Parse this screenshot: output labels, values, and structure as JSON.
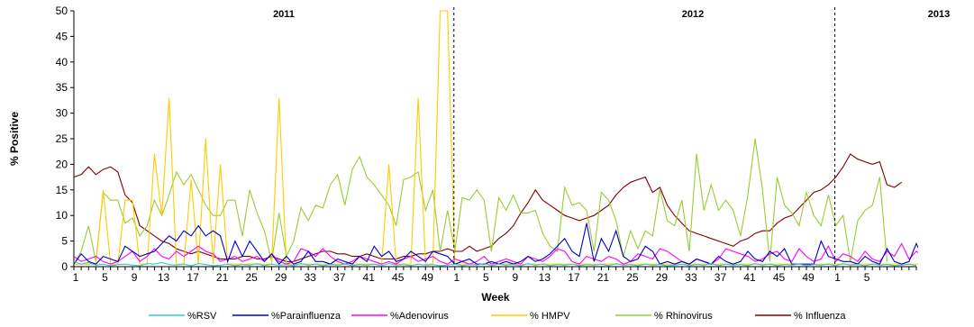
{
  "chart_data": {
    "type": "line",
    "ylabel": "% Positive",
    "xlabel": "Week",
    "ylim": [
      0,
      50
    ],
    "yticks": [
      0,
      5,
      10,
      15,
      20,
      25,
      30,
      35,
      40,
      45,
      50
    ],
    "x_tick_labels": [
      "1",
      "5",
      "9",
      "13",
      "17",
      "21",
      "25",
      "29",
      "33",
      "37",
      "41",
      "45",
      "49",
      "1",
      "5",
      "9",
      "13",
      "17",
      "21",
      "25",
      "29",
      "33",
      "37",
      "41",
      "45",
      "49",
      "1",
      "5"
    ],
    "year_labels": [
      "2011",
      "2012",
      "2013"
    ],
    "year_boundaries": [
      "2012 week 1",
      "2013 week 1"
    ],
    "legend_position": "bottom",
    "series": [
      {
        "name": "%RSV",
        "color": "#33CCCC",
        "values": [
          1.0,
          0.5,
          0.8,
          0.3,
          0.5,
          0.2,
          0.4,
          0.5,
          0.3,
          0.2,
          0.6,
          0.5,
          0.8,
          0.4,
          0.3,
          0.5,
          0.2,
          0.6,
          0.4,
          0.2,
          0.3,
          0.5,
          0.2,
          0.4,
          0.3,
          0.6,
          0.2,
          0.5,
          0.3,
          0.4,
          0.2,
          0.6,
          0.3,
          0.5,
          0.2,
          0.4,
          0.3,
          0.5,
          0.2,
          0.4,
          0.3,
          0.5,
          0.2,
          0.6,
          0.3,
          0.4,
          0.2,
          0.5,
          0.3,
          0.4,
          0.2,
          0.3,
          0.5,
          0.2,
          0.4,
          0.3,
          0.6,
          0.2,
          0.5,
          0.3,
          0.4,
          0.2,
          0.6,
          0.3,
          0.5,
          0.2,
          0.4,
          0.3,
          0.5,
          0.2,
          0.4,
          0.3,
          0.5,
          0.2,
          0.6,
          0.3,
          0.4,
          0.2,
          0.5,
          0.3,
          0.4,
          0.2,
          0.3,
          0.5,
          0.2,
          0.4,
          0.3,
          0.6,
          0.2,
          0.5,
          0.3,
          0.4,
          0.2,
          0.6,
          0.3,
          0.5,
          0.2,
          0.4,
          0.3,
          0.5,
          0.2,
          0.4,
          0.3,
          0.5,
          0.2,
          0.6,
          0.3,
          0.4,
          0.2,
          0.5,
          0.3,
          0.4,
          0.2,
          0.3,
          0.5,
          0.2
        ]
      },
      {
        "name": "%Parainfluenza",
        "color": "#0000CC",
        "values": [
          0.5,
          2.5,
          1.0,
          0.5,
          2.0,
          1.5,
          1.0,
          4.0,
          3.0,
          2.0,
          2.5,
          3.0,
          4.5,
          6.0,
          5.0,
          7.0,
          6.0,
          8.0,
          6.0,
          7.0,
          6.0,
          1.0,
          5.0,
          2.0,
          5.0,
          3.0,
          1.0,
          2.5,
          0.5,
          2.0,
          0.5,
          1.0,
          3.0,
          1.0,
          1.0,
          0.5,
          1.5,
          1.0,
          0.5,
          2.0,
          1.0,
          4.0,
          2.0,
          3.0,
          1.0,
          1.5,
          3.0,
          2.0,
          1.0,
          3.0,
          2.5,
          2.0,
          0.5,
          1.0,
          1.5,
          0.5,
          0.5,
          1.0,
          0.5,
          1.0,
          0.5,
          1.0,
          2.0,
          1.0,
          1.5,
          2.5,
          4.0,
          5.5,
          3.0,
          2.0,
          8.5,
          1.0,
          5.5,
          3.0,
          7.0,
          2.0,
          1.0,
          1.5,
          4.0,
          3.0,
          0.5,
          1.0,
          0.5,
          1.0,
          0.5,
          1.5,
          1.0,
          0.5,
          2.0,
          1.0,
          0.5,
          1.0,
          3.0,
          1.5,
          1.0,
          3.0,
          2.0,
          3.5,
          0.5,
          0.5,
          0.5,
          0.5,
          5.0,
          2.0,
          1.5,
          1.0,
          1.0,
          0.5,
          2.0,
          1.0,
          0.5,
          3.5,
          1.0,
          0.5,
          1.0,
          4.5,
          1.5,
          0.5
        ]
      },
      {
        "name": "%Adenovirus",
        "color": "#FF00FF",
        "values": [
          2.0,
          1.0,
          1.5,
          2.0,
          1.0,
          0.5,
          1.0,
          2.0,
          3.0,
          1.0,
          2.0,
          3.5,
          2.0,
          1.5,
          3.0,
          2.0,
          3.0,
          4.0,
          3.0,
          2.5,
          1.0,
          1.5,
          2.0,
          1.0,
          1.5,
          2.0,
          1.0,
          2.5,
          1.0,
          0.5,
          1.0,
          3.5,
          3.0,
          2.0,
          3.5,
          2.0,
          1.0,
          0.5,
          1.0,
          2.0,
          1.5,
          1.0,
          0.5,
          1.0,
          0.5,
          1.5,
          2.0,
          1.0,
          1.5,
          2.0,
          1.0,
          0.5,
          1.5,
          1.0,
          0.5,
          1.0,
          2.0,
          0.5,
          1.0,
          1.5,
          1.0,
          0.5,
          2.0,
          1.5,
          1.0,
          2.0,
          3.5,
          3.0,
          1.0,
          0.5,
          2.0,
          1.5,
          1.0,
          2.0,
          1.5,
          0.5,
          1.0,
          2.5,
          2.0,
          1.5,
          3.5,
          3.0,
          2.0,
          1.0,
          0.5,
          1.5,
          1.0,
          0.5,
          1.5,
          3.5,
          3.0,
          2.5,
          2.0,
          1.0,
          1.5,
          2.5,
          3.0,
          1.5,
          1.0,
          3.5,
          2.0,
          1.0,
          1.5,
          4.0,
          1.0,
          2.5,
          2.0,
          1.0,
          3.0,
          1.5,
          1.0,
          3.0,
          2.0,
          4.5,
          1.5,
          3.0,
          2.0,
          0.5
        ]
      },
      {
        "name": "% HMPV",
        "color": "#FFCC00",
        "values": [
          0.5,
          0.5,
          0.5,
          0.5,
          15.0,
          0.5,
          0.5,
          13.0,
          13.0,
          0.5,
          0.5,
          22.0,
          10.0,
          33.0,
          0.5,
          0.5,
          17.0,
          0.5,
          25.0,
          0.5,
          20.0,
          0.5,
          0.5,
          0.5,
          0.5,
          0.5,
          0.5,
          0.5,
          33.0,
          0.5,
          0.5,
          0.5,
          0.5,
          0.5,
          0.5,
          0.5,
          0.5,
          0.5,
          0.5,
          0.5,
          0.5,
          0.5,
          0.5,
          20.0,
          0.5,
          0.5,
          0.5,
          33.0,
          0.5,
          0.5,
          50.0,
          50.0,
          0.5,
          0.5,
          0.5,
          0.5,
          0.5,
          0.5,
          0.5,
          0.5,
          0.5,
          0.5,
          0.5,
          0.5,
          0.5,
          0.5,
          0.5,
          0.5,
          0.5,
          0.5,
          0.5,
          0.5,
          0.5,
          0.5,
          0.5,
          0.5,
          0.5,
          0.5,
          0.5,
          0.5,
          0.5,
          0.5,
          0.5,
          0.5,
          0.5,
          0.5,
          0.5,
          0.5,
          0.5,
          0.5,
          0.5,
          0.5,
          0.5,
          0.5,
          0.5,
          0.5,
          0.5,
          0.5,
          0.5,
          0.5,
          0.5,
          0.5,
          0.5,
          0.5,
          0.5,
          0.5,
          0.5,
          0.5,
          0.5,
          0.5,
          0.5,
          0.5,
          0.5,
          0.5,
          0.5,
          0.5,
          0.5
        ]
      },
      {
        "name": "% Rhinovirus",
        "color": "#99CC33",
        "values": [
          0.5,
          3.0,
          8.0,
          1.0,
          14.5,
          13.0,
          13.0,
          8.5,
          9.5,
          6.0,
          8.0,
          13.0,
          10.0,
          14.0,
          18.5,
          16.0,
          18.0,
          15.0,
          12.0,
          10.0,
          10.0,
          13.0,
          13.0,
          6.0,
          15.0,
          10.5,
          7.0,
          1.0,
          10.5,
          2.0,
          5.0,
          11.5,
          9.0,
          12.0,
          11.5,
          16.0,
          18.0,
          12.0,
          19.0,
          21.5,
          17.5,
          16.0,
          14.0,
          12.0,
          8.0,
          17.0,
          17.5,
          18.5,
          11.0,
          15.0,
          3.0,
          11.0,
          3.0,
          13.5,
          13.0,
          15.0,
          13.0,
          3.0,
          13.5,
          11.0,
          14.0,
          10.5,
          10.5,
          11.0,
          6.5,
          4.0,
          3.0,
          15.5,
          12.0,
          12.5,
          11.0,
          3.0,
          14.5,
          13.0,
          9.0,
          2.0,
          7.0,
          3.5,
          7.0,
          6.0,
          15.0,
          9.0,
          8.0,
          13.0,
          3.0,
          22.0,
          11.0,
          16.0,
          11.0,
          13.0,
          11.0,
          6.0,
          14.0,
          25.0,
          15.0,
          1.0,
          17.5,
          12.0,
          10.5,
          8.0,
          14.5,
          10.0,
          8.0,
          14.0,
          8.0,
          10.0,
          1.0,
          9.0,
          11.0,
          12.0,
          17.5,
          1.0
        ]
      },
      {
        "name": "% Influenza",
        "color": "#800000",
        "values": [
          17.5,
          18.0,
          19.5,
          18.0,
          19.0,
          19.5,
          18.5,
          14.0,
          12.5,
          8.0,
          7.0,
          6.0,
          5.0,
          4.5,
          3.5,
          3.0,
          2.5,
          3.0,
          2.5,
          2.0,
          1.5,
          1.5,
          1.5,
          2.0,
          2.0,
          1.5,
          1.5,
          2.0,
          1.5,
          1.0,
          1.0,
          1.5,
          2.0,
          2.5,
          3.0,
          3.0,
          2.5,
          2.5,
          2.0,
          2.0,
          2.5,
          2.0,
          1.5,
          1.5,
          1.5,
          2.0,
          2.0,
          2.5,
          2.5,
          3.0,
          3.0,
          3.5,
          3.0,
          3.0,
          4.0,
          3.0,
          3.5,
          4.0,
          5.5,
          6.5,
          8.0,
          10.5,
          12.5,
          15.0,
          13.0,
          12.0,
          11.0,
          10.0,
          9.5,
          9.0,
          9.5,
          10.0,
          11.0,
          12.0,
          14.0,
          15.5,
          16.5,
          17.0,
          17.5,
          14.5,
          15.5,
          12.0,
          10.0,
          8.5,
          7.0,
          6.5,
          6.0,
          5.5,
          5.0,
          4.5,
          4.0,
          5.0,
          5.5,
          6.5,
          7.0,
          7.0,
          8.5,
          9.5,
          10.0,
          11.5,
          13.0,
          14.5,
          15.0,
          16.0,
          17.5,
          19.5,
          22.0,
          21.0,
          20.5,
          20.0,
          20.5,
          16.0,
          15.5,
          16.5
        ]
      }
    ]
  }
}
